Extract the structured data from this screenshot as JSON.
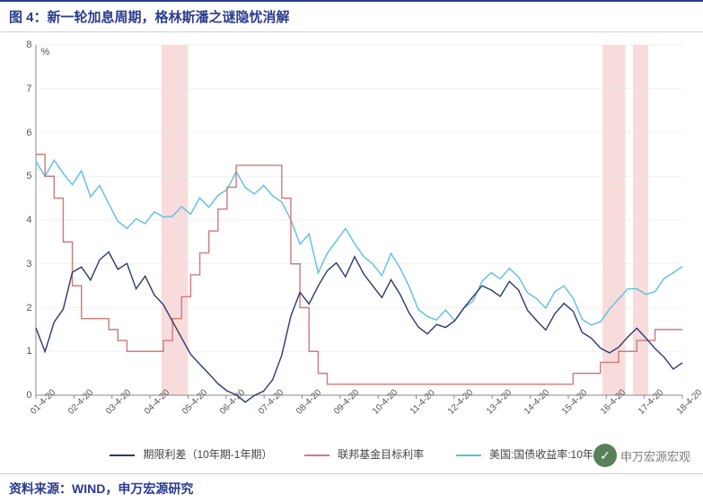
{
  "title": "图 4：新一轮加息周期，格林斯潘之谜隐忧消解",
  "source": "资料来源：WIND，申万宏源研究",
  "watermark": "申万宏源宏观",
  "chart": {
    "type": "line",
    "unit": "%",
    "ylim": [
      0,
      8
    ],
    "ytick_step": 1,
    "background_color": "#ffffff",
    "grid_color": "#e5e5e5",
    "shade_color": "#f8dcdc",
    "axis_color": "#888888",
    "label_fontsize": 11,
    "x_labels": [
      "01-4-20",
      "02-4-20",
      "03-4-20",
      "04-4-20",
      "05-4-20",
      "06-4-20",
      "07-4-20",
      "08-4-20",
      "09-4-20",
      "10-4-20",
      "11-4-20",
      "12-4-20",
      "13-4-20",
      "14-4-20",
      "15-4-20",
      "16-4-20",
      "17-4-20",
      "18-4-20"
    ],
    "shaded_ranges": [
      [
        3.3,
        4.0
      ],
      [
        14.9,
        15.5
      ],
      [
        15.7,
        16.1
      ]
    ],
    "legend": {
      "position": "bottom",
      "items": [
        {
          "label": "期限利差（10年期-1年期）",
          "color": "#2b3a6b"
        },
        {
          "label": "联邦基金目标利率",
          "color": "#d07a7a"
        },
        {
          "label": "美国:国债收益率:10年",
          "color": "#5bc0de"
        }
      ]
    },
    "series": {
      "term_spread": {
        "color": "#2b3a6b",
        "line_width": 1.4,
        "data": [
          1.5,
          1.0,
          1.6,
          2.0,
          2.8,
          3.0,
          2.6,
          3.1,
          3.2,
          2.9,
          3.0,
          2.5,
          2.7,
          2.3,
          2.0,
          1.7,
          1.3,
          1.0,
          0.7,
          0.5,
          0.2,
          0.1,
          0.0,
          -0.1,
          0.0,
          0.1,
          0.3,
          0.9,
          1.8,
          2.4,
          2.1,
          2.5,
          2.8,
          3.0,
          2.7,
          3.2,
          2.8,
          2.5,
          2.2,
          2.6,
          2.3,
          1.9,
          1.6,
          1.4,
          1.6,
          1.5,
          1.7,
          2.0,
          2.3,
          2.5,
          2.4,
          2.2,
          2.6,
          2.4,
          2.0,
          1.7,
          1.5,
          1.8,
          2.1,
          1.9,
          1.5,
          1.3,
          1.1,
          0.9,
          1.1,
          1.3,
          1.6,
          1.3,
          1.1,
          0.8,
          0.6,
          0.7
        ]
      },
      "fed_funds": {
        "color": "#d07a7a",
        "line_width": 1.4,
        "step": true,
        "data": [
          5.5,
          5.0,
          4.5,
          3.5,
          2.5,
          1.75,
          1.75,
          1.75,
          1.5,
          1.25,
          1.0,
          1.0,
          1.0,
          1.0,
          1.25,
          1.75,
          2.25,
          2.75,
          3.25,
          3.75,
          4.25,
          4.75,
          5.25,
          5.25,
          5.25,
          5.25,
          5.25,
          4.5,
          3.0,
          2.0,
          1.0,
          0.5,
          0.25,
          0.25,
          0.25,
          0.25,
          0.25,
          0.25,
          0.25,
          0.25,
          0.25,
          0.25,
          0.25,
          0.25,
          0.25,
          0.25,
          0.25,
          0.25,
          0.25,
          0.25,
          0.25,
          0.25,
          0.25,
          0.25,
          0.25,
          0.25,
          0.25,
          0.25,
          0.25,
          0.5,
          0.5,
          0.5,
          0.75,
          0.75,
          1.0,
          1.0,
          1.25,
          1.25,
          1.5,
          1.5,
          1.5,
          1.5
        ]
      },
      "ust10y": {
        "color": "#5bc0de",
        "line_width": 1.4,
        "data": [
          5.3,
          5.0,
          5.3,
          5.1,
          4.8,
          5.2,
          4.5,
          4.8,
          4.3,
          4.0,
          3.8,
          4.1,
          3.9,
          4.2,
          4.0,
          4.1,
          4.3,
          4.2,
          4.5,
          4.3,
          4.5,
          4.7,
          5.1,
          4.8,
          4.6,
          4.8,
          4.5,
          4.4,
          4.0,
          3.5,
          3.7,
          2.8,
          3.2,
          3.5,
          3.8,
          3.5,
          3.2,
          3.0,
          2.7,
          3.2,
          2.9,
          2.5,
          2.0,
          1.8,
          1.7,
          1.9,
          1.7,
          2.0,
          2.2,
          2.6,
          2.8,
          2.6,
          2.9,
          2.7,
          2.4,
          2.2,
          2.0,
          2.3,
          2.5,
          2.2,
          1.8,
          1.6,
          1.7,
          1.9,
          2.2,
          2.4,
          2.5,
          2.3,
          2.4,
          2.6,
          2.8,
          2.9
        ]
      }
    }
  }
}
